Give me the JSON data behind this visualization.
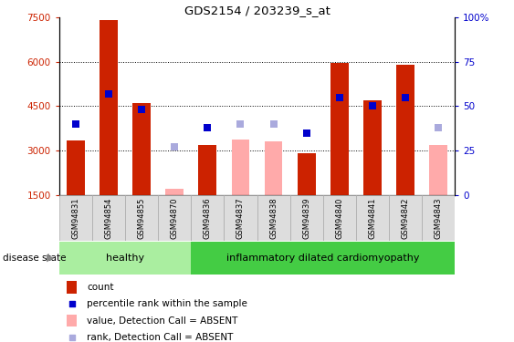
{
  "title": "GDS2154 / 203239_s_at",
  "samples": [
    "GSM94831",
    "GSM94854",
    "GSM94855",
    "GSM94870",
    "GSM94836",
    "GSM94837",
    "GSM94838",
    "GSM94839",
    "GSM94840",
    "GSM94841",
    "GSM94842",
    "GSM94843"
  ],
  "healthy_count": 4,
  "idc_count": 8,
  "count_values": [
    3350,
    7400,
    4600,
    null,
    3200,
    null,
    null,
    2900,
    5950,
    4700,
    5900,
    null
  ],
  "value_absent": [
    null,
    null,
    null,
    1700,
    3200,
    3380,
    3320,
    null,
    null,
    null,
    null,
    3200
  ],
  "rank_present_pct": [
    40,
    57,
    48,
    null,
    38,
    null,
    null,
    35,
    55,
    50,
    55,
    null
  ],
  "rank_absent_pct": [
    null,
    null,
    null,
    27,
    null,
    40,
    40,
    null,
    null,
    null,
    null,
    38
  ],
  "ylim_left": [
    1500,
    7500
  ],
  "ylim_right": [
    0,
    100
  ],
  "yticks_left": [
    1500,
    3000,
    4500,
    6000,
    7500
  ],
  "yticks_right": [
    0,
    25,
    50,
    75,
    100
  ],
  "grid_values": [
    3000,
    4500,
    6000
  ],
  "bar_color_red": "#cc2200",
  "bar_color_pink": "#ffaaaa",
  "dot_color_blue": "#0000cc",
  "dot_color_lightblue": "#aaaadd",
  "healthy_bg": "#aaeea0",
  "idc_bg": "#44cc44",
  "label_bg": "#dddddd",
  "disease_label": "disease state",
  "healthy_label": "healthy",
  "idc_label": "inflammatory dilated cardiomyopathy",
  "legend_count": "count",
  "legend_rank": "percentile rank within the sample",
  "legend_value_absent": "value, Detection Call = ABSENT",
  "legend_rank_absent": "rank, Detection Call = ABSENT"
}
